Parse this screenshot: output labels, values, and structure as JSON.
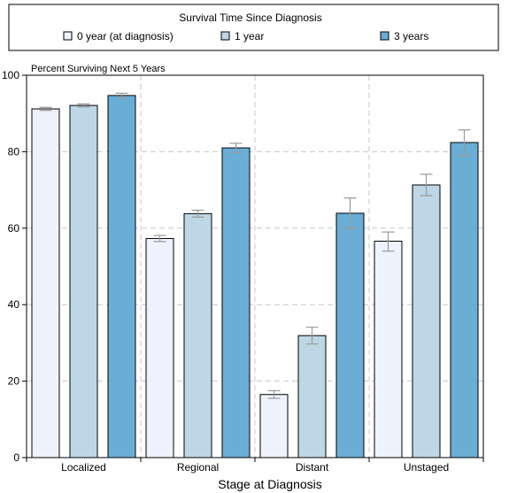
{
  "legend": {
    "title": "Survival Time Since Diagnosis",
    "placement": "top"
  },
  "chart_data": {
    "type": "bar",
    "title": "Percent Surviving Next 5 Years",
    "xlabel": "Stage at Diagnosis",
    "ylabel": "",
    "ylim": [
      0,
      100
    ],
    "yticks": [
      0,
      20,
      40,
      60,
      80,
      100
    ],
    "grid": true,
    "categories": [
      "Localized",
      "Regional",
      "Distant",
      "Unstaged"
    ],
    "series": [
      {
        "name": "0 year (at diagnosis)",
        "color": "#eef2fc",
        "values": [
          91.2,
          57.3,
          16.5,
          56.6
        ],
        "ci_low": [
          90.8,
          56.5,
          15.5,
          54.0
        ],
        "ci_high": [
          91.6,
          58.1,
          17.5,
          59.0
        ]
      },
      {
        "name": "1 year",
        "color": "#bdd7e6",
        "values": [
          92.1,
          63.8,
          31.9,
          71.3
        ],
        "ci_low": [
          91.7,
          62.9,
          29.7,
          68.5
        ],
        "ci_high": [
          92.5,
          64.7,
          34.1,
          74.1
        ]
      },
      {
        "name": "3 years",
        "color": "#6aaed6",
        "values": [
          94.7,
          81.0,
          63.9,
          82.4
        ],
        "ci_low": [
          94.1,
          79.8,
          59.9,
          79.1
        ],
        "ci_high": [
          95.3,
          82.2,
          67.9,
          85.7
        ]
      }
    ],
    "colors": {
      "frame": "#000000",
      "grid": "#c8c8c8",
      "errorbar": "#999999"
    }
  }
}
